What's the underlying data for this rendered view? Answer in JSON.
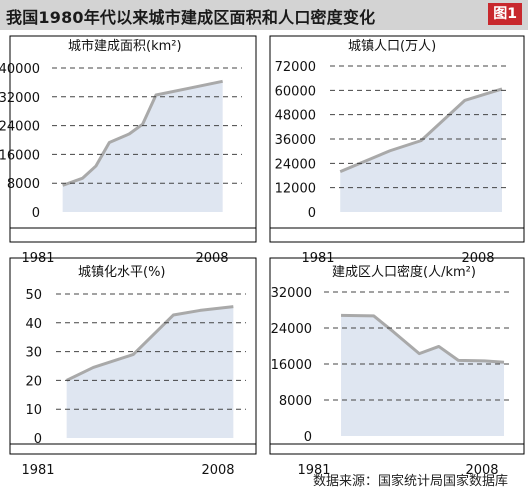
{
  "title": "我国1980年代以来城市建成区面积和人口密度变化",
  "badge": "图1",
  "source": "数据来源：国家统计局国家数据库",
  "colors": {
    "fill": "#dfe6f1",
    "line": "#a9a9a9",
    "grid": "#444444",
    "axis": "#000000",
    "badge": "#c8282d",
    "title_bar": "#d3d3d3"
  },
  "chart_data": [
    {
      "type": "area",
      "title": "城市建成面积(km²)",
      "x_ticks": [
        "1981",
        "2008"
      ],
      "y_ticks": [
        "0",
        "8000",
        "16000",
        "24000",
        "32000",
        "40000"
      ],
      "ylim": [
        0,
        40000
      ],
      "xlim": [
        1981,
        2008
      ],
      "x": [
        1982,
        1985,
        1987,
        1989,
        1992,
        1994,
        1996,
        2001,
        2006
      ],
      "values": [
        7400,
        9400,
        12800,
        19300,
        21700,
        24400,
        32500,
        34400,
        36300
      ]
    },
    {
      "type": "area",
      "title": "城镇人口(万人)",
      "x_ticks": [
        "1981",
        "2008"
      ],
      "y_ticks": [
        "0",
        "12000",
        "24000",
        "36000",
        "48000",
        "60000",
        "72000"
      ],
      "ylim": [
        0,
        72000
      ],
      "xlim": [
        1981,
        2008
      ],
      "x": [
        1982,
        1990,
        1995,
        2002,
        2008
      ],
      "values": [
        19900,
        30200,
        35200,
        55000,
        60700
      ]
    },
    {
      "type": "area",
      "title": "城镇化水平(%)",
      "x_ticks": [
        "1981",
        "2008"
      ],
      "y_ticks": [
        "0",
        "10",
        "20",
        "30",
        "40",
        "50"
      ],
      "ylim": [
        0,
        50
      ],
      "xlim": [
        1981,
        2008
      ],
      "x": [
        1982,
        1986,
        1992,
        1998,
        2002,
        2007
      ],
      "values": [
        20,
        24.5,
        29,
        42.7,
        44.3,
        45.6
      ]
    },
    {
      "type": "area",
      "title": "建成区人口密度(人/km²)",
      "x_ticks": [
        "1981",
        "2008"
      ],
      "y_ticks": [
        "0",
        "8000",
        "16000",
        "24000",
        "32000"
      ],
      "ylim": [
        0,
        32000
      ],
      "xlim": [
        1981,
        2008
      ],
      "x": [
        1983,
        1988,
        1991,
        1995,
        1998,
        2001,
        2005,
        2008
      ],
      "values": [
        26800,
        26700,
        23200,
        18300,
        19900,
        16800,
        16700,
        16400
      ]
    }
  ]
}
